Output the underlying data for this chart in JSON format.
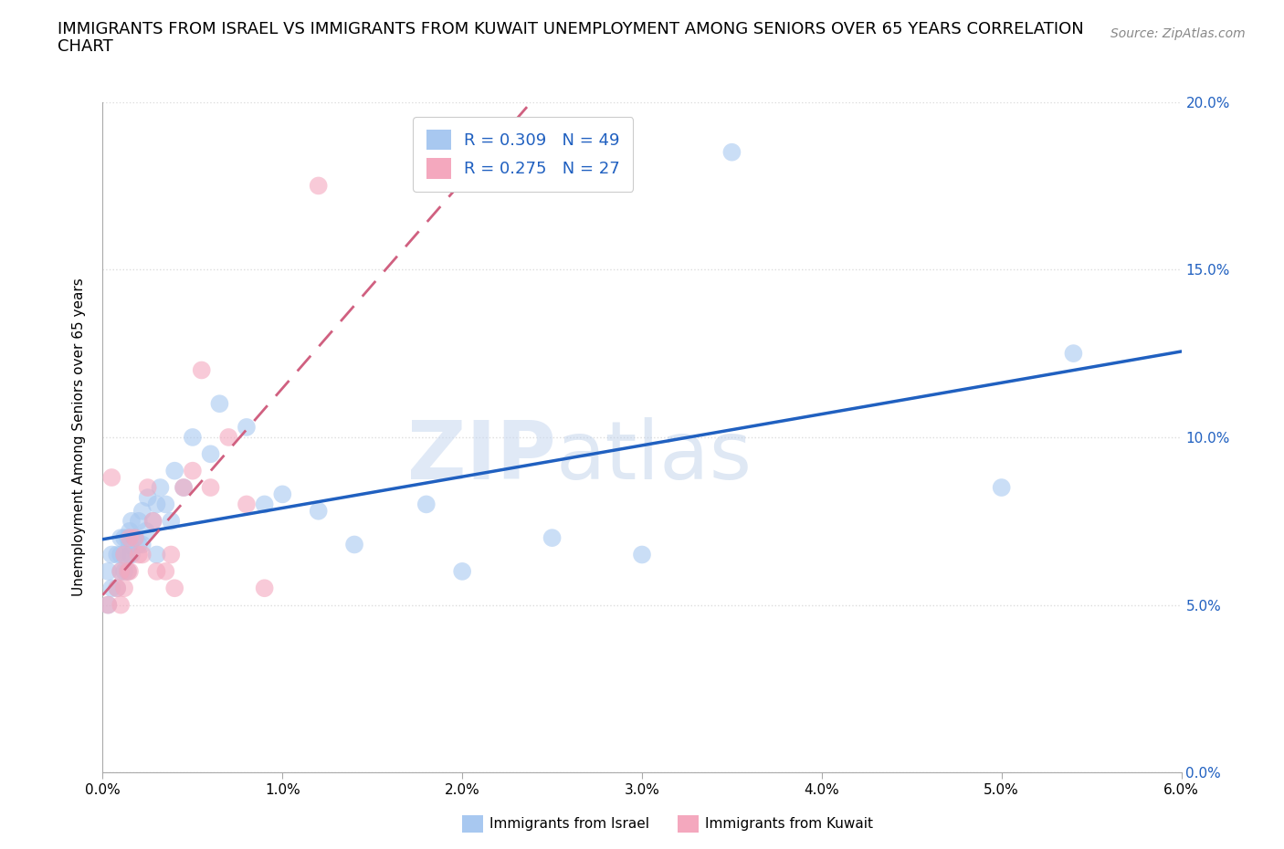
{
  "title": "IMMIGRANTS FROM ISRAEL VS IMMIGRANTS FROM KUWAIT UNEMPLOYMENT AMONG SENIORS OVER 65 YEARS CORRELATION\nCHART",
  "source": "Source: ZipAtlas.com",
  "ylabel": "Unemployment Among Seniors over 65 years",
  "watermark_zip": "ZIP",
  "watermark_atlas": "atlas",
  "israel_color": "#a8c8f0",
  "kuwait_color": "#f4a8be",
  "israel_line_color": "#2060c0",
  "kuwait_line_color": "#d06080",
  "israel_R": 0.309,
  "israel_N": 49,
  "kuwait_R": 0.275,
  "kuwait_N": 27,
  "xlim": [
    0.0,
    0.06
  ],
  "ylim": [
    0.0,
    0.2
  ],
  "xticks": [
    0.0,
    0.01,
    0.02,
    0.03,
    0.04,
    0.05,
    0.06
  ],
  "yticks": [
    0.0,
    0.05,
    0.1,
    0.15,
    0.2
  ],
  "israel_x": [
    0.0003,
    0.0003,
    0.0005,
    0.0005,
    0.0008,
    0.0008,
    0.001,
    0.001,
    0.001,
    0.0012,
    0.0012,
    0.0012,
    0.0014,
    0.0014,
    0.0015,
    0.0015,
    0.0015,
    0.0016,
    0.0016,
    0.0018,
    0.002,
    0.002,
    0.0022,
    0.0022,
    0.0024,
    0.0025,
    0.0028,
    0.003,
    0.003,
    0.0032,
    0.0035,
    0.0038,
    0.004,
    0.0045,
    0.005,
    0.006,
    0.0065,
    0.008,
    0.009,
    0.01,
    0.012,
    0.014,
    0.018,
    0.02,
    0.025,
    0.03,
    0.035,
    0.05,
    0.054
  ],
  "israel_y": [
    0.05,
    0.06,
    0.055,
    0.065,
    0.055,
    0.065,
    0.06,
    0.065,
    0.07,
    0.06,
    0.065,
    0.07,
    0.06,
    0.07,
    0.065,
    0.068,
    0.072,
    0.065,
    0.075,
    0.07,
    0.068,
    0.075,
    0.068,
    0.078,
    0.072,
    0.082,
    0.075,
    0.08,
    0.065,
    0.085,
    0.08,
    0.075,
    0.09,
    0.085,
    0.1,
    0.095,
    0.11,
    0.103,
    0.08,
    0.083,
    0.078,
    0.068,
    0.08,
    0.06,
    0.07,
    0.065,
    0.185,
    0.085,
    0.125
  ],
  "kuwait_x": [
    0.0003,
    0.0005,
    0.0008,
    0.001,
    0.001,
    0.0012,
    0.0012,
    0.0014,
    0.0015,
    0.0015,
    0.0018,
    0.002,
    0.0022,
    0.0025,
    0.0028,
    0.003,
    0.0035,
    0.0038,
    0.004,
    0.0045,
    0.005,
    0.0055,
    0.006,
    0.007,
    0.008,
    0.009,
    0.012
  ],
  "kuwait_y": [
    0.05,
    0.088,
    0.055,
    0.05,
    0.06,
    0.055,
    0.065,
    0.06,
    0.06,
    0.07,
    0.07,
    0.065,
    0.065,
    0.085,
    0.075,
    0.06,
    0.06,
    0.065,
    0.055,
    0.085,
    0.09,
    0.12,
    0.085,
    0.1,
    0.08,
    0.055,
    0.175
  ],
  "axis_color": "#aaaaaa",
  "grid_color": "#dddddd",
  "title_fontsize": 13,
  "label_fontsize": 11,
  "tick_fontsize": 11,
  "legend_fontsize": 13,
  "source_fontsize": 10,
  "right_axis_color": "#2060c0"
}
